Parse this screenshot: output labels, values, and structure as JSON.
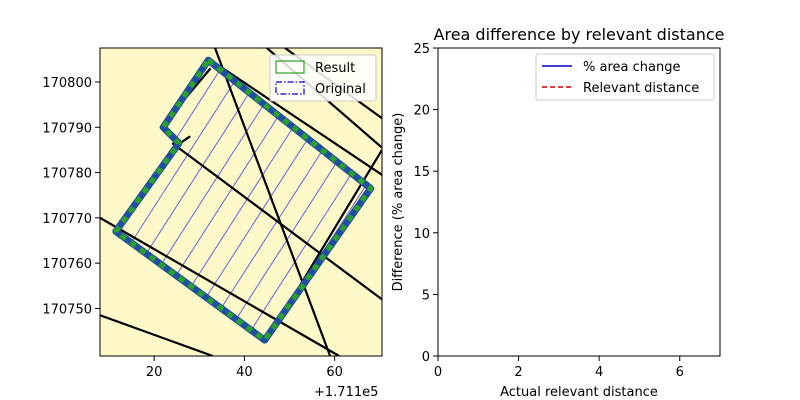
{
  "colors": {
    "background": "#fff8c8",
    "parcel_line": "#000000",
    "result": "#2ca02c",
    "original": "#1f4fa0",
    "hatch": "#4a4ae0",
    "pct_line": "#0000cc",
    "relevant_line": "#cc0000"
  },
  "chart_data": [
    {
      "type": "map",
      "x_ticks": [
        20,
        40,
        60
      ],
      "x_offset_label": "+1.711e5",
      "y_ticks": [
        170750,
        170760,
        170770,
        170780,
        170790,
        170800
      ],
      "xlim": [
        8,
        70.5
      ],
      "ylim": [
        170739.5,
        170807.5
      ],
      "legend": [
        {
          "label": "Result",
          "style": "result-box"
        },
        {
          "label": "Original",
          "style": "original-box"
        }
      ],
      "legend_position": "upper right",
      "polygons": {
        "result": [
          [
            32,
            170804.8
          ],
          [
            68,
            170776.5
          ],
          [
            44.5,
            170743
          ],
          [
            11.5,
            170767
          ],
          [
            25.5,
            170786.5
          ],
          [
            22,
            170790
          ]
        ],
        "original": [
          [
            32,
            170804.8
          ],
          [
            68,
            170776.5
          ],
          [
            44.5,
            170743
          ],
          [
            11.5,
            170767
          ],
          [
            25.5,
            170786.5
          ],
          [
            22,
            170790
          ]
        ],
        "parcel_lines": [
          [
            [
              8,
              170770
            ],
            [
              61,
              170739.5
            ]
          ],
          [
            [
              8,
              170748.5
            ],
            [
              33,
              170739.5
            ]
          ],
          [
            [
              24,
              170786.5
            ],
            [
              70.5,
              170752
            ]
          ],
          [
            [
              25,
              170786
            ],
            [
              28,
              170788
            ]
          ],
          [
            [
              33.5,
              170807.5
            ],
            [
              59,
              170739.5
            ]
          ],
          [
            [
              45,
              170807.5
            ],
            [
              70.5,
              170785.5
            ]
          ],
          [
            [
              49,
              170807.5
            ],
            [
              70.5,
              170792
            ]
          ],
          [
            [
              33,
              170804.5
            ],
            [
              70.5,
              170779.5
            ]
          ],
          [
            [
              21.5,
              170790
            ],
            [
              32.5,
              170803
            ]
          ],
          [
            [
              11.5,
              170767
            ],
            [
              45,
              170743
            ]
          ],
          [
            [
              45,
              170743
            ],
            [
              70.5,
              170785
            ]
          ]
        ]
      }
    },
    {
      "type": "line",
      "title": "Area difference by relevant distance",
      "xlabel": "Actual relevant distance",
      "ylabel": "Difference (% area change)",
      "xlim": [
        0,
        7
      ],
      "ylim": [
        0,
        25
      ],
      "x_ticks": [
        0,
        2,
        4,
        6
      ],
      "y_ticks": [
        0,
        5,
        10,
        15,
        20,
        25
      ],
      "series": [
        {
          "name": "% area change",
          "style": "solid",
          "x": [],
          "y": []
        },
        {
          "name": "Relevant distance",
          "style": "dashed",
          "x": [],
          "y": []
        }
      ],
      "legend_position": "upper right",
      "grid": false
    }
  ]
}
